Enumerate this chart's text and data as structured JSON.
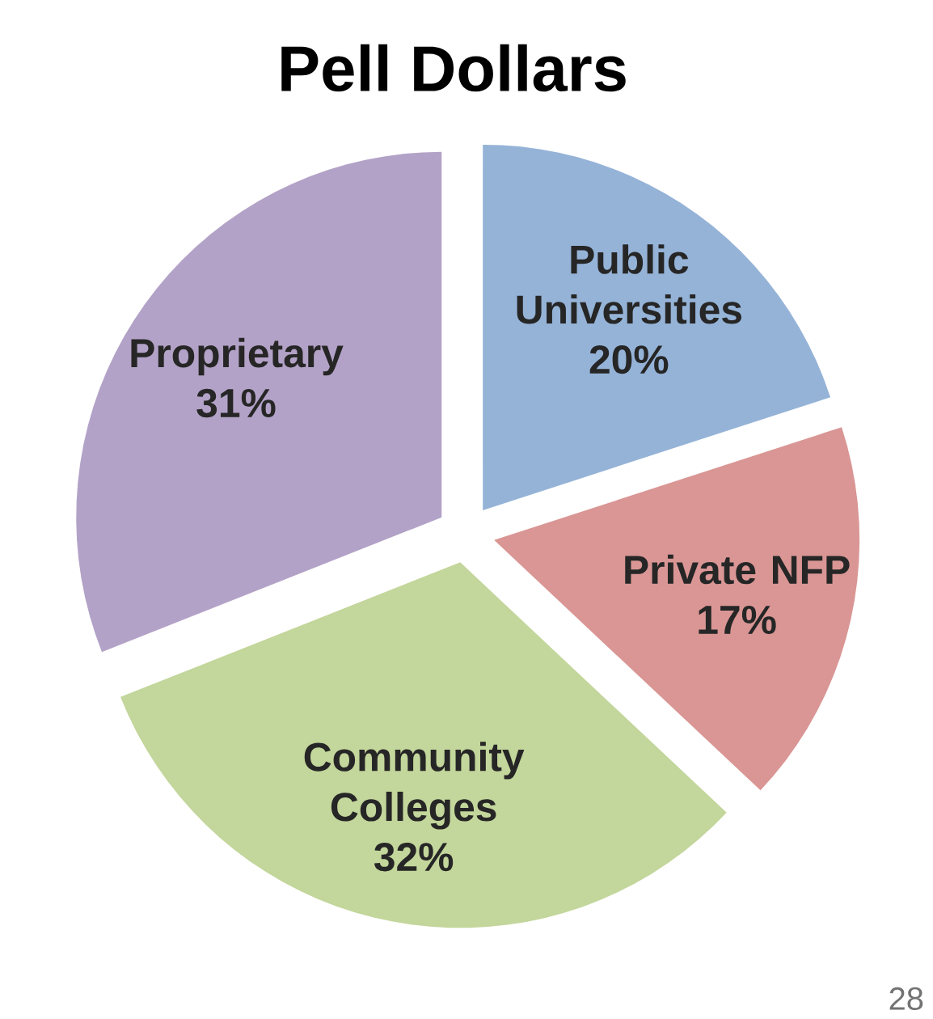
{
  "chart_data": {
    "type": "pie",
    "title": "Pell Dollars",
    "categories": [
      "Public Universities",
      "Private NFP",
      "Community Colleges",
      "Proprietary"
    ],
    "values": [
      20,
      17,
      32,
      31
    ],
    "value_labels": [
      "20%",
      "17%",
      "32%",
      "31%"
    ],
    "colors": [
      "#95b3d7",
      "#d99694",
      "#c3d69b",
      "#b3a2c7"
    ],
    "annotations": [
      "28"
    ]
  }
}
